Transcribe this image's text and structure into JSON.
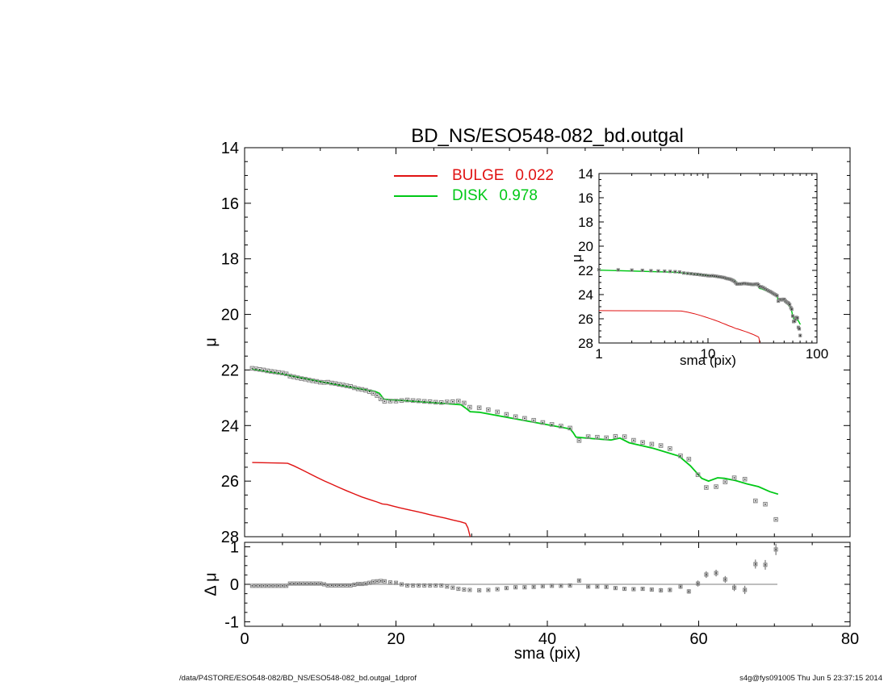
{
  "chart_data": {
    "type": "line+scatter",
    "title": "BD_NS/ESO548-082_bd.outgal",
    "legend": {
      "entries": [
        {
          "label": "BULGE",
          "value": "0.022",
          "color": "#e01212"
        },
        {
          "label": "DISK",
          "value": "0.978",
          "color": "#00c816"
        }
      ]
    },
    "colors": {
      "bulge": "#e01212",
      "disk": "#00c816",
      "marker": "#8a8a8a",
      "marker_dot": "#2b2b2b",
      "axis": "#000000",
      "zero_line": "#a9a9a9",
      "err": "#5e5e5e"
    },
    "panels": [
      {
        "id": "main",
        "ylabel": "μ",
        "x_axis": {
          "scale": "linear",
          "min": 0,
          "max": 80,
          "major": [
            0,
            20,
            40,
            60,
            80
          ],
          "minor": [
            5,
            10,
            15,
            25,
            30,
            35,
            45,
            50,
            55,
            65,
            70,
            75
          ],
          "labeled": false
        },
        "y_axis": {
          "scale": "linear",
          "min": 14,
          "max": 28,
          "inverted": true,
          "major": [
            14,
            16,
            18,
            20,
            22,
            24,
            26,
            28
          ],
          "minor": [
            14.5,
            15,
            15.5,
            16.5,
            17,
            17.5,
            18.5,
            19,
            19.5,
            20.5,
            21,
            21.5,
            22.5,
            23,
            23.5,
            24.5,
            25,
            25.5,
            26.5,
            27,
            27.5
          ],
          "labeled": true
        },
        "series": [
          {
            "name": "bulge-model-line",
            "kind": "line",
            "ref": "bulge",
            "color_key": "bulge",
            "width": 1.4
          },
          {
            "name": "disk-model-line",
            "kind": "line",
            "ref": "disk",
            "color_key": "disk",
            "width": 1.8
          },
          {
            "name": "observed-profile-points",
            "kind": "scatter",
            "ref": "profile",
            "size": 4.5,
            "show_err": false
          }
        ]
      },
      {
        "id": "inset",
        "xlabel": "sma (pix)",
        "ylabel": "μ",
        "x_axis": {
          "scale": "log",
          "min": 1,
          "max": 100,
          "major": [
            1,
            10,
            100
          ],
          "minor": [
            2,
            3,
            4,
            5,
            6,
            7,
            8,
            9,
            20,
            30,
            40,
            50,
            60,
            70,
            80,
            90
          ],
          "labeled": true
        },
        "y_axis": {
          "scale": "linear",
          "min": 14,
          "max": 28,
          "inverted": true,
          "major": [
            14,
            16,
            18,
            20,
            22,
            24,
            26,
            28
          ],
          "minor": [
            14.5,
            15,
            15.5,
            16.5,
            17,
            17.5,
            18.5,
            19,
            19.5,
            20.5,
            21,
            21.5,
            22.5,
            23,
            23.5,
            24.5,
            25,
            25.5,
            26.5,
            27,
            27.5
          ],
          "labeled": true
        },
        "series": [
          {
            "name": "bulge-model-line",
            "kind": "line",
            "ref": "bulge",
            "color_key": "bulge",
            "width": 1.0
          },
          {
            "name": "disk-model-line",
            "kind": "line",
            "ref": "disk",
            "color_key": "disk",
            "width": 1.4
          },
          {
            "name": "observed-profile-points",
            "kind": "scatter",
            "ref": "profile",
            "size": 3,
            "show_err": true
          }
        ]
      },
      {
        "id": "resid",
        "xlabel": "sma (pix)",
        "ylabel": "Δ μ",
        "x_axis": {
          "scale": "linear",
          "min": 0,
          "max": 80,
          "major": [
            0,
            20,
            40,
            60,
            80
          ],
          "minor": [
            5,
            10,
            15,
            25,
            30,
            35,
            45,
            50,
            55,
            65,
            70,
            75
          ],
          "labeled": true
        },
        "y_axis": {
          "scale": "linear",
          "min": -1.12,
          "max": 1.12,
          "inverted": false,
          "major": [
            1,
            0,
            -1
          ],
          "minor": [
            -0.75,
            -0.5,
            -0.25,
            0.25,
            0.5,
            0.75
          ],
          "labeled": true
        },
        "series": [
          {
            "name": "zero-line",
            "kind": "line",
            "ref": "zero",
            "color_key": "zero_line",
            "width": 1.4
          },
          {
            "name": "residual-points",
            "kind": "scatter",
            "ref": "residual",
            "size": 4,
            "show_err": true
          }
        ]
      }
    ],
    "series_data": {
      "profile": {
        "sma": [
          1,
          1.5,
          2,
          2.5,
          3,
          3.5,
          4,
          4.5,
          5,
          5.5,
          6,
          6.5,
          7,
          7.5,
          8,
          8.5,
          9,
          9.5,
          10,
          10.5,
          11,
          11.5,
          12,
          12.5,
          13,
          13.5,
          14,
          14.5,
          15,
          15.5,
          16,
          16.5,
          17,
          17.5,
          18,
          18.5,
          19.25,
          20,
          20.75,
          21.5,
          22.25,
          23,
          23.75,
          24.5,
          25.25,
          26,
          26.75,
          27.5,
          28.25,
          29,
          29.75,
          31,
          32.2,
          33.4,
          34.6,
          35.8,
          37,
          38.2,
          39.4,
          40.6,
          41.8,
          43,
          44.2,
          45.4,
          46.6,
          47.8,
          49,
          50.2,
          51.4,
          52.6,
          53.8,
          55,
          56.2,
          57.6,
          58.7,
          59.9,
          61,
          62.3,
          63.5,
          64.7,
          66.1,
          67.5,
          68.8,
          70.2
        ],
        "mu": [
          21.94,
          21.96,
          21.98,
          22.0,
          22.03,
          22.05,
          22.07,
          22.09,
          22.11,
          22.14,
          22.22,
          22.25,
          22.28,
          22.31,
          22.33,
          22.36,
          22.39,
          22.41,
          22.44,
          22.45,
          22.44,
          22.47,
          22.49,
          22.52,
          22.54,
          22.57,
          22.59,
          22.64,
          22.68,
          22.7,
          22.73,
          22.78,
          22.84,
          22.92,
          23.04,
          23.13,
          23.12,
          23.12,
          23.1,
          23.08,
          23.1,
          23.11,
          23.13,
          23.14,
          23.16,
          23.17,
          23.15,
          23.14,
          23.12,
          23.19,
          23.34,
          23.36,
          23.43,
          23.51,
          23.6,
          23.68,
          23.74,
          23.81,
          23.89,
          23.96,
          24.02,
          24.09,
          24.54,
          24.4,
          24.42,
          24.44,
          24.39,
          24.4,
          24.53,
          24.61,
          24.67,
          24.72,
          24.83,
          25.09,
          25.21,
          25.77,
          26.23,
          26.2,
          26.03,
          25.88,
          25.93,
          26.71,
          26.83,
          27.38
        ],
        "err": [
          0.01,
          0.01,
          0.01,
          0.01,
          0.01,
          0.01,
          0.01,
          0.01,
          0.01,
          0.01,
          0.01,
          0.01,
          0.01,
          0.01,
          0.01,
          0.01,
          0.01,
          0.01,
          0.01,
          0.01,
          0.01,
          0.01,
          0.01,
          0.01,
          0.01,
          0.01,
          0.01,
          0.01,
          0.01,
          0.01,
          0.01,
          0.01,
          0.01,
          0.01,
          0.01,
          0.01,
          0.01,
          0.01,
          0.01,
          0.01,
          0.01,
          0.01,
          0.01,
          0.01,
          0.01,
          0.01,
          0.01,
          0.01,
          0.01,
          0.01,
          0.01,
          0.02,
          0.02,
          0.02,
          0.03,
          0.03,
          0.03,
          0.03,
          0.03,
          0.03,
          0.03,
          0.03,
          0.04,
          0.04,
          0.04,
          0.04,
          0.05,
          0.05,
          0.05,
          0.05,
          0.05,
          0.06,
          0.06,
          0.06,
          0.06,
          0.08,
          0.09,
          0.09,
          0.09,
          0.09,
          0.11,
          0.12,
          0.13,
          0.15
        ]
      },
      "residual": {
        "sma": [
          1,
          1.5,
          2,
          2.5,
          3,
          3.5,
          4,
          4.5,
          5,
          5.5,
          6,
          6.5,
          7,
          7.5,
          8,
          8.5,
          9,
          9.5,
          10,
          10.5,
          11,
          11.5,
          12,
          12.5,
          13,
          13.5,
          14,
          14.5,
          15,
          15.5,
          16,
          16.5,
          17,
          17.5,
          18,
          18.5,
          19.25,
          20,
          20.75,
          21.5,
          22.25,
          23,
          23.75,
          24.5,
          25.25,
          26,
          26.75,
          27.5,
          28.25,
          29,
          29.75,
          31,
          32.2,
          33.4,
          34.6,
          35.8,
          37,
          38.2,
          39.4,
          40.6,
          41.8,
          43,
          44.2,
          45.4,
          46.6,
          47.8,
          49,
          50.2,
          51.4,
          52.6,
          53.8,
          55,
          56.2,
          57.6,
          58.7,
          59.9,
          61,
          62.3,
          63.5,
          64.7,
          66.1,
          67.5,
          68.8,
          70.2
        ],
        "dmu": [
          -0.04,
          -0.04,
          -0.04,
          -0.04,
          -0.04,
          -0.04,
          -0.04,
          -0.04,
          -0.04,
          -0.04,
          0.02,
          0.02,
          0.02,
          0.02,
          0.02,
          0.02,
          0.02,
          0.02,
          0.02,
          0.0,
          -0.03,
          -0.03,
          -0.03,
          -0.03,
          -0.03,
          -0.03,
          -0.03,
          -0.01,
          0.01,
          0.01,
          0.02,
          0.04,
          0.07,
          0.08,
          0.09,
          0.08,
          0.05,
          0.04,
          0.0,
          -0.03,
          -0.03,
          -0.03,
          -0.03,
          -0.03,
          -0.03,
          -0.03,
          -0.06,
          -0.09,
          -0.12,
          -0.14,
          -0.15,
          -0.16,
          -0.15,
          -0.13,
          -0.1,
          -0.08,
          -0.08,
          -0.07,
          -0.05,
          -0.04,
          -0.04,
          -0.03,
          0.1,
          -0.06,
          -0.06,
          -0.07,
          -0.1,
          -0.12,
          -0.13,
          -0.12,
          -0.14,
          -0.16,
          -0.15,
          -0.06,
          -0.19,
          0.02,
          0.26,
          0.3,
          0.13,
          -0.09,
          -0.15,
          0.54,
          0.52,
          0.93
        ],
        "err": [
          0.01,
          0.01,
          0.01,
          0.01,
          0.01,
          0.01,
          0.01,
          0.01,
          0.01,
          0.01,
          0.01,
          0.01,
          0.01,
          0.01,
          0.01,
          0.01,
          0.01,
          0.01,
          0.01,
          0.01,
          0.01,
          0.01,
          0.01,
          0.01,
          0.01,
          0.01,
          0.01,
          0.01,
          0.01,
          0.01,
          0.01,
          0.01,
          0.01,
          0.01,
          0.01,
          0.01,
          0.01,
          0.01,
          0.01,
          0.01,
          0.01,
          0.01,
          0.01,
          0.01,
          0.01,
          0.01,
          0.01,
          0.01,
          0.01,
          0.01,
          0.01,
          0.02,
          0.02,
          0.02,
          0.03,
          0.03,
          0.03,
          0.03,
          0.03,
          0.03,
          0.03,
          0.03,
          0.04,
          0.04,
          0.04,
          0.04,
          0.05,
          0.05,
          0.05,
          0.05,
          0.05,
          0.06,
          0.06,
          0.06,
          0.06,
          0.08,
          0.09,
          0.09,
          0.09,
          0.09,
          0.11,
          0.12,
          0.13,
          0.15
        ]
      },
      "disk": {
        "points": [
          [
            1,
            21.98
          ],
          [
            5,
            22.15
          ],
          [
            10,
            22.42
          ],
          [
            15,
            22.67
          ],
          [
            17.2,
            22.77
          ],
          [
            17.8,
            22.84
          ],
          [
            18.4,
            23.05
          ],
          [
            24,
            23.16
          ],
          [
            28.6,
            23.25
          ],
          [
            29.2,
            23.37
          ],
          [
            29.8,
            23.5
          ],
          [
            31,
            23.52
          ],
          [
            36,
            23.77
          ],
          [
            40,
            23.97
          ],
          [
            43,
            24.12
          ],
          [
            43.4,
            24.25
          ],
          [
            43.8,
            24.42
          ],
          [
            46,
            24.47
          ],
          [
            48.4,
            24.52
          ],
          [
            49.6,
            24.45
          ],
          [
            50.8,
            24.62
          ],
          [
            54,
            24.82
          ],
          [
            57.4,
            25.1
          ],
          [
            58.9,
            25.45
          ],
          [
            60.4,
            25.9
          ],
          [
            61.3,
            26.0
          ],
          [
            62.5,
            25.88
          ],
          [
            63.4,
            25.9
          ],
          [
            64.9,
            25.98
          ],
          [
            66.4,
            26.1
          ],
          [
            67.9,
            26.2
          ],
          [
            69.4,
            26.38
          ],
          [
            70.5,
            26.47
          ]
        ]
      },
      "bulge": {
        "points": [
          [
            1,
            25.33
          ],
          [
            3,
            25.34
          ],
          [
            5,
            25.35
          ],
          [
            5.7,
            25.36
          ],
          [
            6.5,
            25.45
          ],
          [
            7.5,
            25.58
          ],
          [
            8.5,
            25.72
          ],
          [
            9.5,
            25.86
          ],
          [
            10.5,
            25.99
          ],
          [
            11.5,
            26.11
          ],
          [
            12.5,
            26.23
          ],
          [
            13.5,
            26.35
          ],
          [
            14.5,
            26.46
          ],
          [
            15.5,
            26.57
          ],
          [
            16.5,
            26.66
          ],
          [
            17.5,
            26.75
          ],
          [
            18.2,
            26.82
          ],
          [
            18.8,
            26.84
          ],
          [
            19.5,
            26.89
          ],
          [
            20.5,
            26.96
          ],
          [
            21.5,
            27.02
          ],
          [
            22.5,
            27.08
          ],
          [
            23.5,
            27.14
          ],
          [
            24.5,
            27.21
          ],
          [
            25.5,
            27.27
          ],
          [
            26.5,
            27.33
          ],
          [
            27.5,
            27.4
          ],
          [
            28.5,
            27.46
          ],
          [
            29.2,
            27.52
          ],
          [
            29.5,
            27.68
          ],
          [
            29.8,
            28.0
          ]
        ]
      },
      "zero": {
        "points": [
          [
            1,
            0
          ],
          [
            70.4,
            0
          ]
        ]
      }
    }
  },
  "footer": {
    "left": "/data/P4STORE/ESO548-082/BD_NS/ESO548-082_bd.outgal_1dprof",
    "right": "s4g@fys091005  Thu Jun  5 23:37:15 2014"
  }
}
